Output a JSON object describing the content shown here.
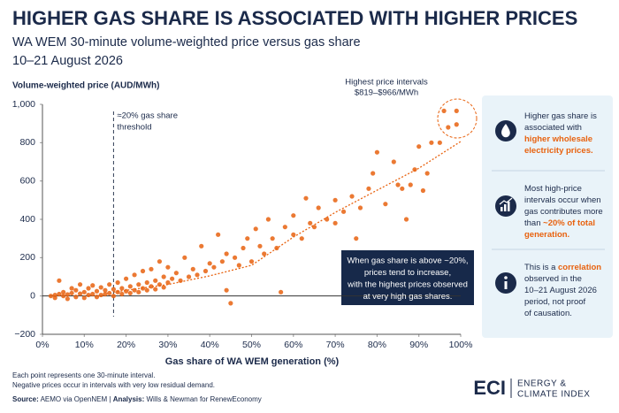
{
  "chart_data": {
    "type": "scatter",
    "title": "HIGHER GAS SHARE IS ASSOCIATED WITH HIGHER PRICES",
    "subtitle": "WA WEM 30-minute volume-weighted price versus gas share",
    "date_range": "10–21 August 2026",
    "y_label": "Volume-weighted price (AUD/MWh)",
    "x_label": "Gas share of WA WEM generation (%)",
    "color": "#e8620f",
    "xlim": [
      0,
      100
    ],
    "ylim": [
      -200,
      1000
    ],
    "xticks": [
      {
        "value": 0,
        "label": "0%"
      },
      {
        "value": 10,
        "label": "10%"
      },
      {
        "value": 20,
        "label": "20%"
      },
      {
        "value": 30,
        "label": "30%"
      },
      {
        "value": 40,
        "label": "40%"
      },
      {
        "value": 50,
        "label": "50%"
      },
      {
        "value": 60,
        "label": "60%"
      },
      {
        "value": 70,
        "label": "70%"
      },
      {
        "value": 80,
        "label": "80%"
      },
      {
        "value": 90,
        "label": "90%"
      },
      {
        "value": 100,
        "label": "100%"
      }
    ],
    "yticks": [
      {
        "value": -200,
        "label": "−200"
      },
      0,
      200,
      400,
      600,
      800,
      {
        "value": 1000,
        "label": "1,000"
      }
    ],
    "x": [
      2,
      3,
      3,
      4,
      4,
      5,
      5,
      6,
      6,
      7,
      7,
      8,
      8,
      9,
      9,
      10,
      10,
      11,
      11,
      12,
      12,
      13,
      13,
      14,
      14,
      15,
      15,
      16,
      16,
      17,
      17,
      18,
      18,
      19,
      19,
      20,
      20,
      21,
      21,
      22,
      22,
      23,
      23,
      24,
      24,
      25,
      25,
      26,
      26,
      27,
      27,
      28,
      28,
      29,
      29,
      30,
      30,
      31,
      32,
      33,
      34,
      35,
      36,
      37,
      38,
      39,
      40,
      41,
      42,
      43,
      44,
      44,
      45,
      46,
      47,
      48,
      49,
      50,
      51,
      52,
      53,
      54,
      55,
      56,
      57,
      58,
      60,
      60,
      62,
      63,
      64,
      65,
      66,
      68,
      70,
      70,
      72,
      74,
      75,
      76,
      78,
      79,
      80,
      82,
      84,
      85,
      86,
      87,
      88,
      89,
      90,
      91,
      92,
      93,
      95,
      96,
      97,
      99,
      99
    ],
    "values": [
      0,
      5,
      -10,
      10,
      80,
      0,
      20,
      8,
      -15,
      15,
      40,
      -5,
      30,
      12,
      60,
      20,
      -10,
      40,
      5,
      10,
      55,
      25,
      -5,
      5,
      45,
      30,
      10,
      15,
      60,
      35,
      0,
      20,
      70,
      40,
      10,
      25,
      90,
      50,
      15,
      30,
      110,
      60,
      20,
      40,
      130,
      70,
      30,
      50,
      140,
      80,
      35,
      60,
      180,
      100,
      45,
      70,
      150,
      90,
      120,
      80,
      200,
      100,
      140,
      110,
      260,
      130,
      170,
      150,
      320,
      180,
      220,
      30,
      -38,
      200,
      160,
      250,
      300,
      180,
      350,
      260,
      220,
      400,
      300,
      250,
      20,
      360,
      320,
      420,
      300,
      510,
      380,
      360,
      460,
      400,
      500,
      380,
      440,
      520,
      300,
      460,
      560,
      640,
      750,
      480,
      700,
      580,
      560,
      400,
      580,
      660,
      780,
      550,
      640,
      800,
      800,
      966,
      880,
      966,
      895
    ],
    "trend": {
      "x": [
        17,
        30,
        40,
        50,
        60,
        70,
        80,
        90,
        100
      ],
      "values": [
        20,
        60,
        105,
        160,
        307,
        436,
        552,
        667,
        806
      ]
    },
    "threshold": {
      "x": 17,
      "label": [
        "≈20% gas share",
        "threshold"
      ]
    },
    "highlight": [
      "Highest price intervals",
      "$819–$966/MWh"
    ],
    "callout": [
      "When gas share is above ~20%,",
      "prices tend to increase,",
      "with the highest prices observed",
      "at very high gas shares."
    ],
    "panel": [
      [
        [
          {
            "text": "Higher gas share is"
          }
        ],
        [
          {
            "text": "associated with"
          }
        ],
        [
          {
            "text": "higher wholesale",
            "accent": true
          }
        ],
        [
          {
            "text": "electricity prices.",
            "accent": true
          }
        ]
      ],
      [
        [
          {
            "text": "Most high-price"
          }
        ],
        [
          {
            "text": "intervals occur when"
          }
        ],
        [
          {
            "text": "gas contributes more"
          }
        ],
        [
          {
            "text": "than "
          },
          {
            "text": "~20% of total",
            "accent": true
          }
        ],
        [
          {
            "text": "generation.",
            "accent": true
          }
        ]
      ],
      [
        [
          {
            "text": "This is a "
          },
          {
            "text": "correlation",
            "accent": true
          }
        ],
        [
          {
            "text": "observed in the"
          }
        ],
        [
          {
            "text": "10–21 August 2026"
          }
        ],
        [
          {
            "text": "period, not proof"
          }
        ],
        [
          {
            "text": "of causation."
          }
        ]
      ]
    ],
    "footnotes": [
      "Each point represents one 30-minute interval.",
      "Negative prices occur in intervals with very low residual demand."
    ],
    "source": [
      {
        "text": "Source:",
        "bold": true
      },
      {
        "text": " AEMO via OpenNEM   |   "
      },
      {
        "text": "Analysis:",
        "bold": true
      },
      {
        "text": " Wills & Newman for RenewEconomy"
      }
    ],
    "logo": {
      "mark": "ECI",
      "lines": [
        "ENERGY &",
        "CLIMATE INDEX"
      ]
    }
  }
}
